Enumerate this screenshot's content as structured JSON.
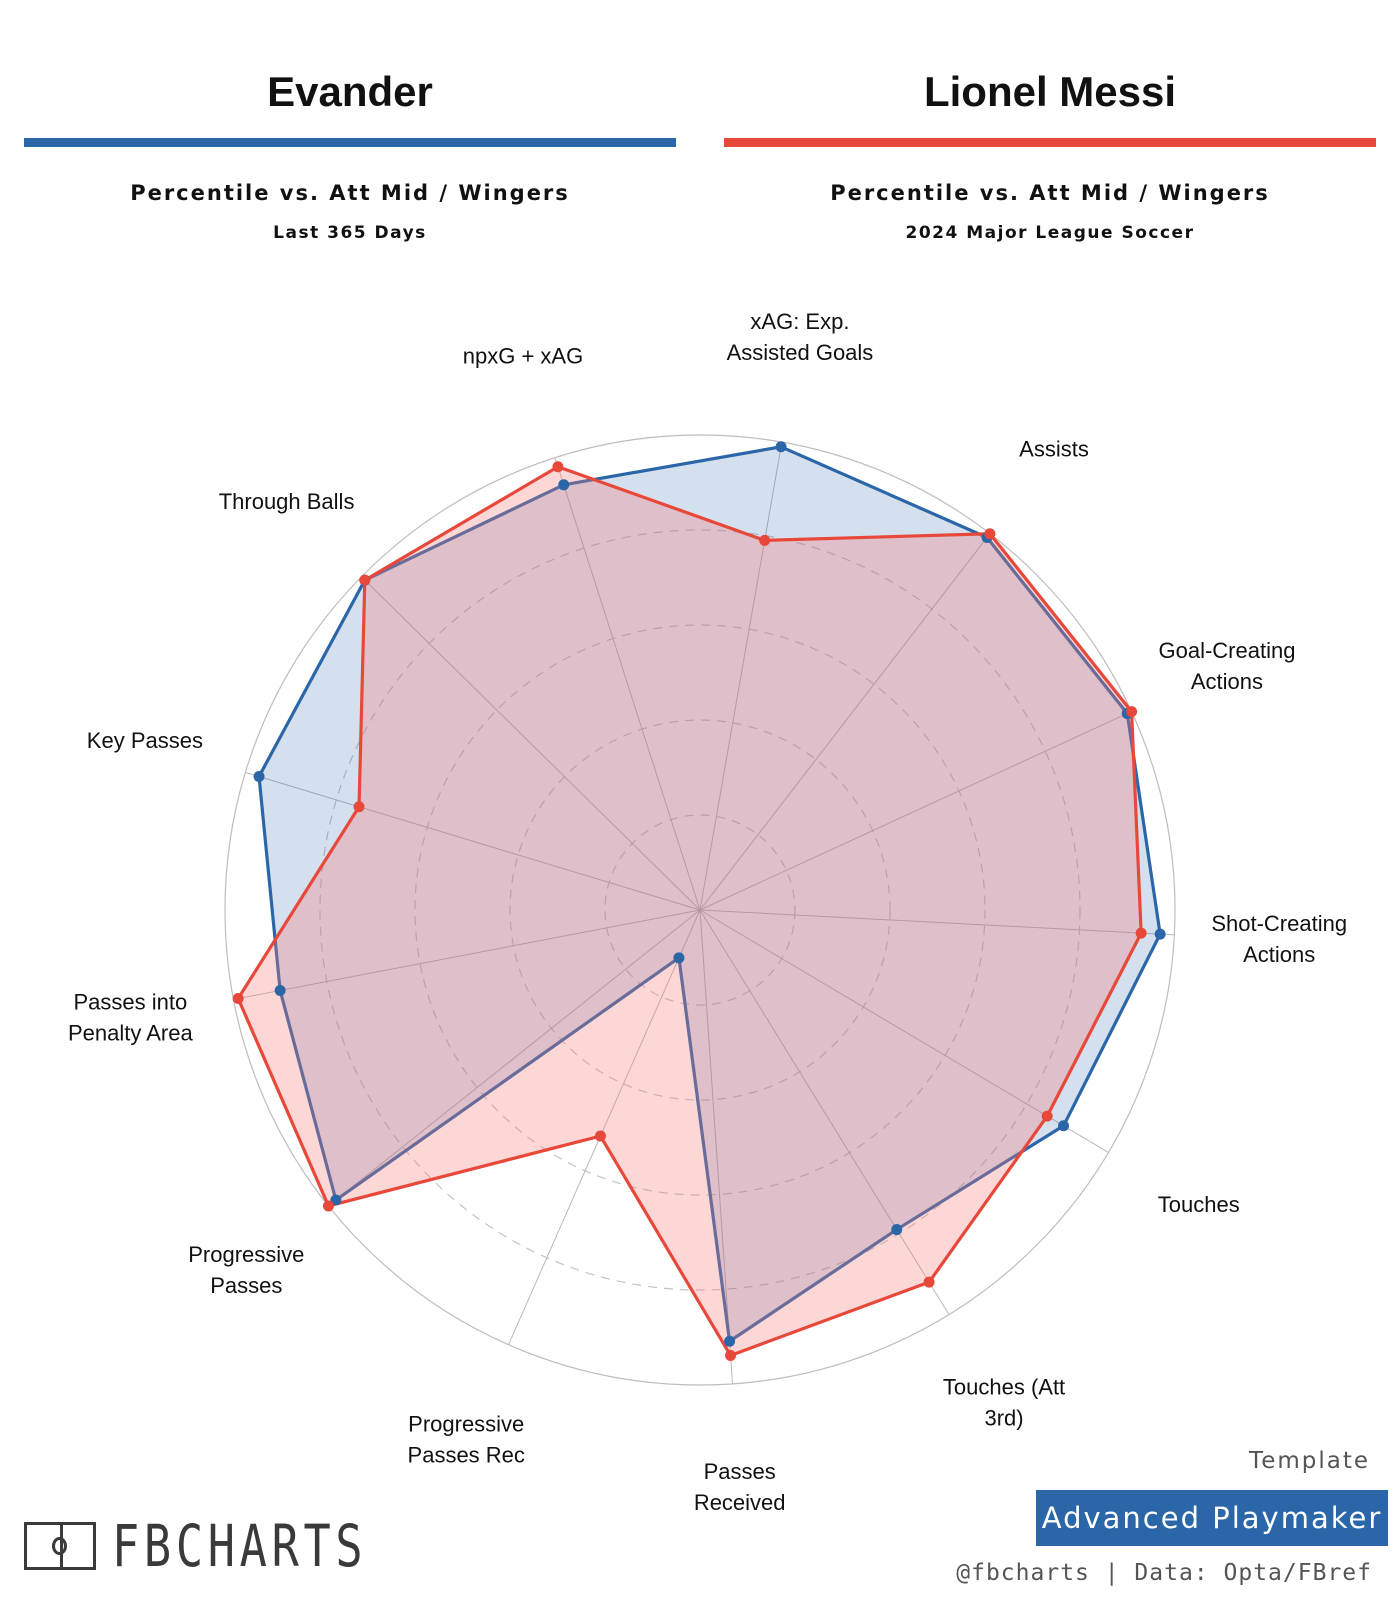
{
  "header": {
    "left": {
      "name": "Evander",
      "subtitle": "Percentile vs. Att Mid / Wingers",
      "competition": "Last 365 Days",
      "color": "#2b66a8"
    },
    "right": {
      "name": "Lionel Messi",
      "subtitle": "Percentile vs. Att Mid / Wingers",
      "competition": "2024 Major League Soccer",
      "color": "#e8483a"
    }
  },
  "chart_data": {
    "type": "radar",
    "axes": [
      "Shot-Creating Actions",
      "Touches",
      "Touches (Att 3rd)",
      "Passes Received",
      "Progressive Passes Rec",
      "Progressive Passes",
      "Passes into Penalty Area",
      "Key Passes",
      "Through Balls",
      "npxG + xAG",
      "xAG: Exp. Assisted Goals",
      "Assists",
      "Goal-Creating Actions"
    ],
    "range": [
      0,
      100
    ],
    "grid_rings": [
      20,
      40,
      60,
      80
    ],
    "series": [
      {
        "name": "Evander",
        "color": "#2b66a8",
        "fill": "rgba(43,102,168,0.2)",
        "values": [
          97,
          89,
          79,
          91,
          11,
          98,
          90,
          97,
          99,
          94,
          99,
          99,
          99
        ]
      },
      {
        "name": "Lionel Messi",
        "color": "#e8483a",
        "fill": "rgba(248,120,120,0.3)",
        "values": [
          93,
          85,
          92,
          94,
          52,
          100,
          99,
          75,
          99,
          98,
          79,
          100,
          100
        ]
      }
    ]
  },
  "footer": {
    "logo_text": "FBCHARTS",
    "template_label": "Template",
    "template_name": "Advanced Playmaker",
    "template_color": "#2b66a8",
    "credits": "@fbcharts | Data: Opta/FBref"
  }
}
